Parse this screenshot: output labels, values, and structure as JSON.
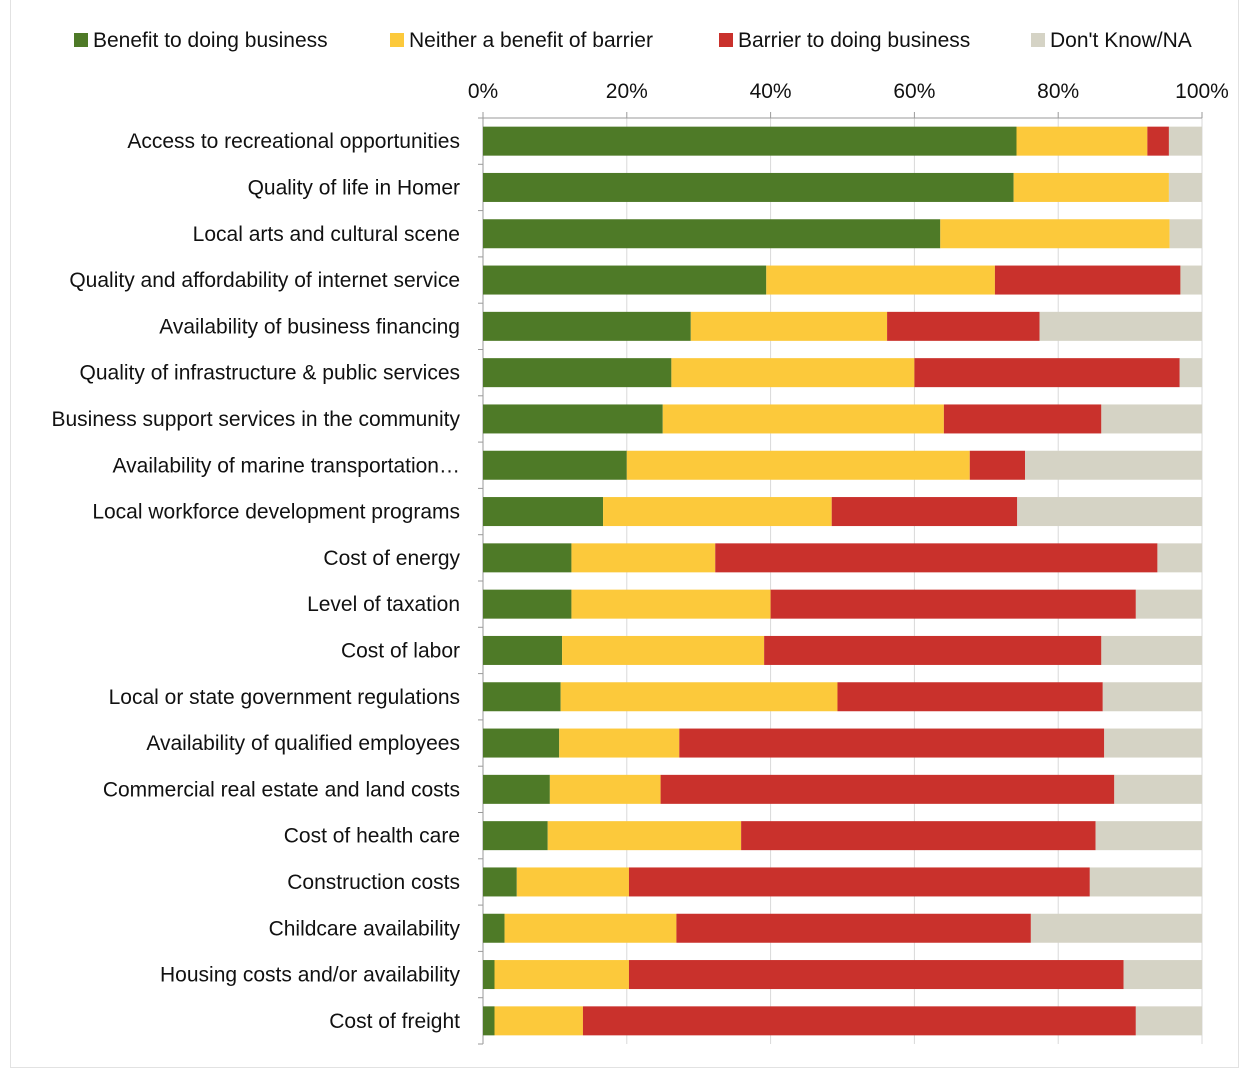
{
  "chart_data": {
    "type": "bar",
    "orientation": "horizontal",
    "stacked": true,
    "categories": [
      "Access to recreational opportunities",
      "Quality of life in Homer",
      "Local arts and cultural scene",
      "Quality and affordability of internet service",
      "Availability of business financing",
      "Quality of infrastructure & public services",
      "Business support services in the community",
      "Availability of marine transportation…",
      "Local workforce development programs",
      "Cost of energy",
      "Level of taxation",
      "Cost of labor",
      "Local or state government regulations",
      "Availability of qualified employees",
      "Commercial real estate and land costs",
      "Cost of health care",
      "Construction costs",
      "Childcare availability",
      "Housing costs and/or availability",
      "Cost of freight"
    ],
    "series": [
      {
        "name": "Benefit to doing business",
        "color": "#4e7a27",
        "values": [
          74.2,
          73.8,
          63.6,
          39.4,
          28.9,
          26.2,
          25.0,
          20.0,
          16.7,
          12.3,
          12.3,
          11.0,
          10.8,
          10.6,
          9.3,
          9.0,
          4.7,
          3.0,
          1.6,
          1.6
        ]
      },
      {
        "name": "Neither a benefit of barrier",
        "color": "#fcc93b",
        "values": [
          18.2,
          21.6,
          31.9,
          31.8,
          27.3,
          33.8,
          39.1,
          47.7,
          31.8,
          20.0,
          27.7,
          28.1,
          38.5,
          16.7,
          15.4,
          26.9,
          15.6,
          23.9,
          18.7,
          12.3
        ]
      },
      {
        "name": "Barrier to doing business",
        "color": "#c9312c",
        "values": [
          3.0,
          0,
          0,
          25.8,
          21.2,
          36.9,
          21.9,
          7.7,
          25.8,
          61.5,
          50.8,
          46.9,
          36.9,
          59.1,
          63.1,
          49.3,
          64.1,
          49.3,
          68.8,
          76.9
        ]
      },
      {
        "name": "Don't Know/NA",
        "color": "#d5d3c5",
        "values": [
          4.6,
          4.6,
          4.5,
          3.0,
          22.6,
          3.1,
          14.0,
          24.6,
          25.7,
          6.2,
          9.2,
          14.0,
          13.8,
          13.6,
          12.2,
          14.8,
          15.6,
          23.8,
          10.9,
          9.2
        ]
      }
    ],
    "xlim": [
      0,
      100
    ],
    "x_ticks": [
      "0%",
      "20%",
      "40%",
      "60%",
      "80%",
      "100%"
    ],
    "x_tick_values": [
      0,
      20,
      40,
      60,
      80,
      100
    ],
    "xaxis_position": "top",
    "legend_position": "top",
    "grid": true,
    "title": "",
    "xlabel": "",
    "ylabel": ""
  }
}
